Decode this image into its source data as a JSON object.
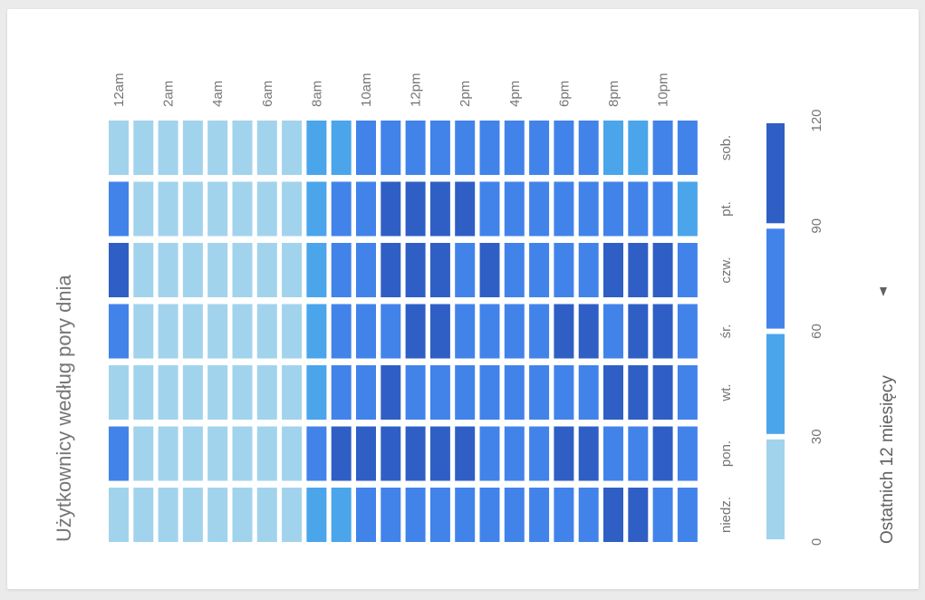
{
  "chart_data": {
    "type": "heatmap",
    "title": "Użytkownicy według pory dnia",
    "hours": [
      "12am",
      "1am",
      "2am",
      "3am",
      "4am",
      "5am",
      "6am",
      "7am",
      "8am",
      "9am",
      "10am",
      "11am",
      "12pm",
      "1pm",
      "2pm",
      "3pm",
      "4pm",
      "5pm",
      "6pm",
      "7pm",
      "8pm",
      "9pm",
      "10pm",
      "11pm"
    ],
    "hour_tick_labels": [
      "12am",
      "2am",
      "4am",
      "6am",
      "8am",
      "10am",
      "12pm",
      "2pm",
      "4pm",
      "6pm",
      "8pm",
      "10pm"
    ],
    "days": [
      "niedz.",
      "pon.",
      "wt.",
      "śr.",
      "czw.",
      "pt.",
      "sob."
    ],
    "values": [
      [
        15,
        15,
        15,
        15,
        15,
        15,
        15,
        15,
        50,
        55,
        70,
        65,
        70,
        68,
        60,
        65,
        70,
        75,
        80,
        85,
        95,
        100,
        85,
        70
      ],
      [
        70,
        15,
        15,
        15,
        15,
        15,
        15,
        15,
        60,
        100,
        105,
        100,
        100,
        100,
        95,
        80,
        80,
        85,
        90,
        100,
        85,
        80,
        95,
        80
      ],
      [
        15,
        15,
        15,
        15,
        15,
        15,
        15,
        15,
        45,
        60,
        70,
        95,
        85,
        80,
        80,
        80,
        80,
        75,
        80,
        85,
        95,
        105,
        110,
        80
      ],
      [
        65,
        15,
        15,
        15,
        15,
        15,
        15,
        15,
        55,
        70,
        85,
        80,
        95,
        90,
        80,
        80,
        80,
        85,
        90,
        100,
        85,
        95,
        90,
        80
      ],
      [
        100,
        15,
        15,
        15,
        15,
        15,
        15,
        15,
        55,
        65,
        85,
        90,
        90,
        100,
        75,
        100,
        80,
        80,
        75,
        80,
        95,
        100,
        95,
        60
      ],
      [
        75,
        15,
        15,
        15,
        15,
        15,
        15,
        15,
        55,
        75,
        85,
        95,
        95,
        100,
        95,
        80,
        75,
        80,
        70,
        75,
        80,
        85,
        75,
        55
      ],
      [
        15,
        15,
        15,
        15,
        15,
        15,
        15,
        15,
        50,
        55,
        65,
        70,
        60,
        65,
        60,
        75,
        80,
        80,
        80,
        70,
        55,
        55,
        70,
        75
      ]
    ],
    "legend": {
      "ticks": [
        "0",
        "30",
        "60",
        "90",
        "120"
      ],
      "colors": [
        "#a2d3ec",
        "#4aa5eb",
        "#4283ea",
        "#2f5fc4"
      ]
    },
    "color_scale": [
      "#a2d3ec",
      "#4aa5eb",
      "#4283ea",
      "#2f5fc4"
    ]
  },
  "range_selector": {
    "label": "Ostatnich 12 miesięcy"
  }
}
